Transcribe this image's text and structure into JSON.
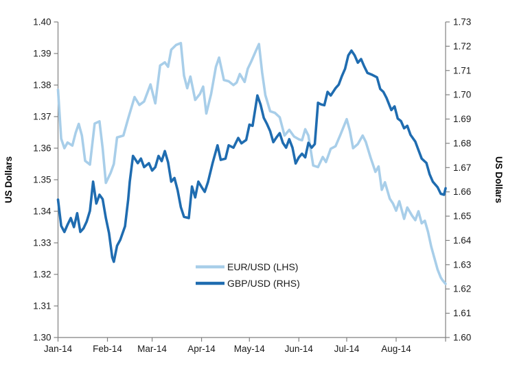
{
  "chart_data": {
    "type": "line",
    "title": "",
    "x_axis": {
      "tick_labels": [
        "Jan-14",
        "Feb-14",
        "Mar-14",
        "Apr-14",
        "May-14",
        "Jun-14",
        "Jul-14",
        "Aug-14"
      ],
      "month_tick_days": [
        0,
        31,
        59,
        90,
        120,
        151,
        181,
        212,
        243
      ],
      "domain_days": [
        0,
        243
      ],
      "grid": false
    },
    "left_axis": {
      "title": "US Dollars",
      "min": 1.3,
      "max": 1.4,
      "step": 0.01,
      "tick_labels": [
        "1.30",
        "1.31",
        "1.32",
        "1.33",
        "1.34",
        "1.35",
        "1.36",
        "1.37",
        "1.38",
        "1.39",
        "1.40"
      ]
    },
    "right_axis": {
      "title": "US Dollars",
      "min": 1.6,
      "max": 1.73,
      "step": 0.01,
      "tick_labels": [
        "1.60",
        "1.61",
        "1.62",
        "1.63",
        "1.64",
        "1.65",
        "1.66",
        "1.67",
        "1.68",
        "1.69",
        "1.70",
        "1.71",
        "1.72",
        "1.73"
      ]
    },
    "legend": {
      "position": "inside-bottom-center",
      "entries": [
        "EUR/USD (LHS)",
        "GBP/USD (RHS)"
      ]
    },
    "series": [
      {
        "name": "EUR/USD (LHS)",
        "axis": "left",
        "color": "#A8CEE9",
        "points": [
          [
            0,
            1.3785
          ],
          [
            2,
            1.363
          ],
          [
            4,
            1.36
          ],
          [
            6,
            1.3618
          ],
          [
            9,
            1.3608
          ],
          [
            11,
            1.3648
          ],
          [
            13,
            1.3677
          ],
          [
            15,
            1.364
          ],
          [
            17,
            1.356
          ],
          [
            20,
            1.3548
          ],
          [
            23,
            1.3678
          ],
          [
            26,
            1.3685
          ],
          [
            28,
            1.36
          ],
          [
            30,
            1.349
          ],
          [
            33,
            1.3522
          ],
          [
            35,
            1.355
          ],
          [
            37,
            1.3634
          ],
          [
            41,
            1.364
          ],
          [
            44,
            1.3694
          ],
          [
            48,
            1.3762
          ],
          [
            51,
            1.3737
          ],
          [
            54,
            1.3748
          ],
          [
            58,
            1.3802
          ],
          [
            61,
            1.3742
          ],
          [
            64,
            1.3862
          ],
          [
            67,
            1.3872
          ],
          [
            69,
            1.3858
          ],
          [
            71,
            1.3912
          ],
          [
            74,
            1.3927
          ],
          [
            77,
            1.3933
          ],
          [
            79,
            1.383
          ],
          [
            81,
            1.379
          ],
          [
            83,
            1.3827
          ],
          [
            86,
            1.3753
          ],
          [
            89,
            1.3772
          ],
          [
            91,
            1.3795
          ],
          [
            93,
            1.371
          ],
          [
            96,
            1.3772
          ],
          [
            99,
            1.3858
          ],
          [
            101,
            1.3887
          ],
          [
            104,
            1.3816
          ],
          [
            107,
            1.3812
          ],
          [
            110,
            1.38
          ],
          [
            112,
            1.3808
          ],
          [
            114,
            1.3835
          ],
          [
            117,
            1.381
          ],
          [
            119,
            1.3852
          ],
          [
            121,
            1.3873
          ],
          [
            124,
            1.3908
          ],
          [
            126,
            1.393
          ],
          [
            128,
            1.384
          ],
          [
            130,
            1.3768
          ],
          [
            133,
            1.3717
          ],
          [
            136,
            1.3712
          ],
          [
            139,
            1.3698
          ],
          [
            142,
            1.364
          ],
          [
            145,
            1.3658
          ],
          [
            148,
            1.3637
          ],
          [
            151,
            1.3628
          ],
          [
            153,
            1.3625
          ],
          [
            155,
            1.366
          ],
          [
            157,
            1.364
          ],
          [
            160,
            1.3545
          ],
          [
            163,
            1.354
          ],
          [
            166,
            1.3572
          ],
          [
            168,
            1.3556
          ],
          [
            171,
            1.3598
          ],
          [
            174,
            1.3606
          ],
          [
            177,
            1.3642
          ],
          [
            181,
            1.3692
          ],
          [
            183,
            1.3655
          ],
          [
            185,
            1.36
          ],
          [
            188,
            1.3613
          ],
          [
            191,
            1.364
          ],
          [
            193,
            1.362
          ],
          [
            196,
            1.357
          ],
          [
            199,
            1.3525
          ],
          [
            201,
            1.3542
          ],
          [
            203,
            1.3468
          ],
          [
            205,
            1.3492
          ],
          [
            208,
            1.344
          ],
          [
            210,
            1.3425
          ],
          [
            212,
            1.3402
          ],
          [
            214,
            1.3432
          ],
          [
            217,
            1.3376
          ],
          [
            219,
            1.3412
          ],
          [
            222,
            1.3386
          ],
          [
            224,
            1.3372
          ],
          [
            226,
            1.34
          ],
          [
            228,
            1.3362
          ],
          [
            230,
            1.337
          ],
          [
            232,
            1.3335
          ],
          [
            234,
            1.3288
          ],
          [
            236,
            1.3252
          ],
          [
            238,
            1.3215
          ],
          [
            240,
            1.319
          ],
          [
            241,
            1.3182
          ],
          [
            243,
            1.317
          ]
        ]
      },
      {
        "name": "GBP/USD (RHS)",
        "axis": "right",
        "color": "#1F6CB0",
        "points": [
          [
            0,
            1.6568
          ],
          [
            2,
            1.646
          ],
          [
            4,
            1.6435
          ],
          [
            6,
            1.6465
          ],
          [
            8,
            1.6492
          ],
          [
            10,
            1.6455
          ],
          [
            12,
            1.6512
          ],
          [
            14,
            1.6435
          ],
          [
            16,
            1.645
          ],
          [
            18,
            1.6478
          ],
          [
            20,
            1.6522
          ],
          [
            22,
            1.6642
          ],
          [
            24,
            1.6552
          ],
          [
            26,
            1.6588
          ],
          [
            28,
            1.657
          ],
          [
            30,
            1.6492
          ],
          [
            32,
            1.643
          ],
          [
            34,
            1.633
          ],
          [
            35,
            1.6312
          ],
          [
            37,
            1.6378
          ],
          [
            39,
            1.6402
          ],
          [
            42,
            1.6458
          ],
          [
            44,
            1.6568
          ],
          [
            45,
            1.6642
          ],
          [
            47,
            1.6748
          ],
          [
            50,
            1.6718
          ],
          [
            52,
            1.6737
          ],
          [
            54,
            1.6702
          ],
          [
            57,
            1.6718
          ],
          [
            59,
            1.6688
          ],
          [
            61,
            1.6702
          ],
          [
            63,
            1.6748
          ],
          [
            65,
            1.6727
          ],
          [
            67,
            1.6768
          ],
          [
            69,
            1.6722
          ],
          [
            71,
            1.6642
          ],
          [
            73,
            1.6657
          ],
          [
            75,
            1.6607
          ],
          [
            77,
            1.6537
          ],
          [
            79,
            1.6497
          ],
          [
            82,
            1.6492
          ],
          [
            84,
            1.6622
          ],
          [
            86,
            1.6577
          ],
          [
            88,
            1.6642
          ],
          [
            90,
            1.662
          ],
          [
            92,
            1.66
          ],
          [
            94,
            1.664
          ],
          [
            97,
            1.672
          ],
          [
            100,
            1.6792
          ],
          [
            102,
            1.6732
          ],
          [
            105,
            1.6737
          ],
          [
            107,
            1.6792
          ],
          [
            110,
            1.6782
          ],
          [
            113,
            1.6822
          ],
          [
            115,
            1.68
          ],
          [
            118,
            1.6814
          ],
          [
            120,
            1.6877
          ],
          [
            122,
            1.6872
          ],
          [
            125,
            1.6997
          ],
          [
            127,
            1.696
          ],
          [
            129,
            1.6905
          ],
          [
            131,
            1.688
          ],
          [
            133,
            1.685
          ],
          [
            135,
            1.6805
          ],
          [
            137,
            1.6825
          ],
          [
            139,
            1.6842
          ],
          [
            141,
            1.6802
          ],
          [
            143,
            1.6782
          ],
          [
            145,
            1.6817
          ],
          [
            147,
            1.6782
          ],
          [
            149,
            1.6717
          ],
          [
            151,
            1.6742
          ],
          [
            153,
            1.6757
          ],
          [
            155,
            1.6742
          ],
          [
            157,
            1.6802
          ],
          [
            159,
            1.6782
          ],
          [
            161,
            1.6797
          ],
          [
            163,
            1.6967
          ],
          [
            165,
            1.696
          ],
          [
            167,
            1.6957
          ],
          [
            169,
            1.7012
          ],
          [
            171,
            1.6997
          ],
          [
            174,
            1.7027
          ],
          [
            176,
            1.7042
          ],
          [
            178,
            1.7077
          ],
          [
            180,
            1.7107
          ],
          [
            182,
            1.7162
          ],
          [
            184,
            1.7182
          ],
          [
            186,
            1.7162
          ],
          [
            188,
            1.7132
          ],
          [
            190,
            1.7147
          ],
          [
            192,
            1.7117
          ],
          [
            194,
            1.709
          ],
          [
            197,
            1.7082
          ],
          [
            200,
            1.7072
          ],
          [
            202,
            1.7024
          ],
          [
            204,
            1.7012
          ],
          [
            206,
            1.6987
          ],
          [
            209,
            1.6937
          ],
          [
            211,
            1.6952
          ],
          [
            213,
            1.6902
          ],
          [
            215,
            1.6892
          ],
          [
            217,
            1.6862
          ],
          [
            219,
            1.6872
          ],
          [
            221,
            1.6835
          ],
          [
            224,
            1.6807
          ],
          [
            226,
            1.6772
          ],
          [
            228,
            1.6737
          ],
          [
            231,
            1.6719
          ],
          [
            233,
            1.6672
          ],
          [
            235,
            1.6642
          ],
          [
            238,
            1.6619
          ],
          [
            240,
            1.6592
          ],
          [
            242,
            1.6588
          ],
          [
            243,
            1.6615
          ]
        ]
      }
    ]
  },
  "colors": {
    "eur_line": "#A8CEE9",
    "gbp_line": "#1F6CB0",
    "axis": "#808080",
    "tick_text": "#1a1a1a",
    "background": "#FFFFFF"
  },
  "geometry_note": "dual-axis line chart, no gridlines, legend inside plot lower-center"
}
